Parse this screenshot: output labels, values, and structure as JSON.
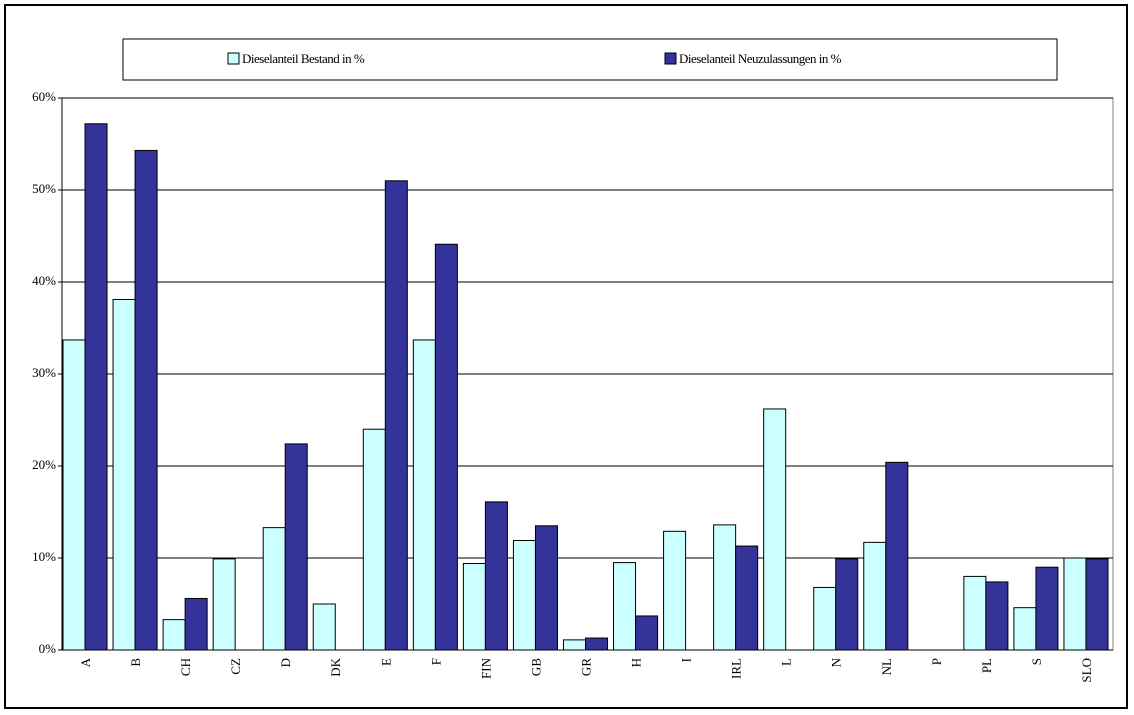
{
  "chart_data": {
    "type": "bar",
    "categories": [
      "A",
      "B",
      "CH",
      "CZ",
      "D",
      "DK",
      "E",
      "F",
      "FIN",
      "GB",
      "GR",
      "H",
      "I",
      "IRL",
      "L",
      "N",
      "NL",
      "P",
      "PL",
      "S",
      "SLO"
    ],
    "series": [
      {
        "name": "Dieselanteil Bestand in %",
        "color": "#ccffff",
        "values": [
          33.7,
          38.1,
          3.3,
          9.9,
          13.3,
          5.0,
          24.0,
          33.7,
          9.4,
          11.9,
          1.1,
          9.5,
          12.9,
          13.6,
          26.2,
          6.8,
          11.7,
          null,
          8.0,
          4.6,
          10.0
        ]
      },
      {
        "name": "Dieselanteil Neuzulassungen in %",
        "color": "#333399",
        "values": [
          57.2,
          54.3,
          5.6,
          null,
          22.4,
          null,
          51.0,
          44.1,
          16.1,
          13.5,
          1.3,
          3.7,
          null,
          11.3,
          null,
          9.9,
          20.4,
          null,
          7.4,
          9.0,
          9.9
        ]
      }
    ],
    "ylim": [
      0,
      60
    ],
    "yticks": [
      {
        "value": 0,
        "label": "0%"
      },
      {
        "value": 10,
        "label": "10%"
      },
      {
        "value": 20,
        "label": "20%"
      },
      {
        "value": 30,
        "label": "30%"
      },
      {
        "value": 40,
        "label": "40%"
      },
      {
        "value": 50,
        "label": "50%"
      },
      {
        "value": 60,
        "label": "60%"
      }
    ],
    "grid": true,
    "legend": "top"
  }
}
